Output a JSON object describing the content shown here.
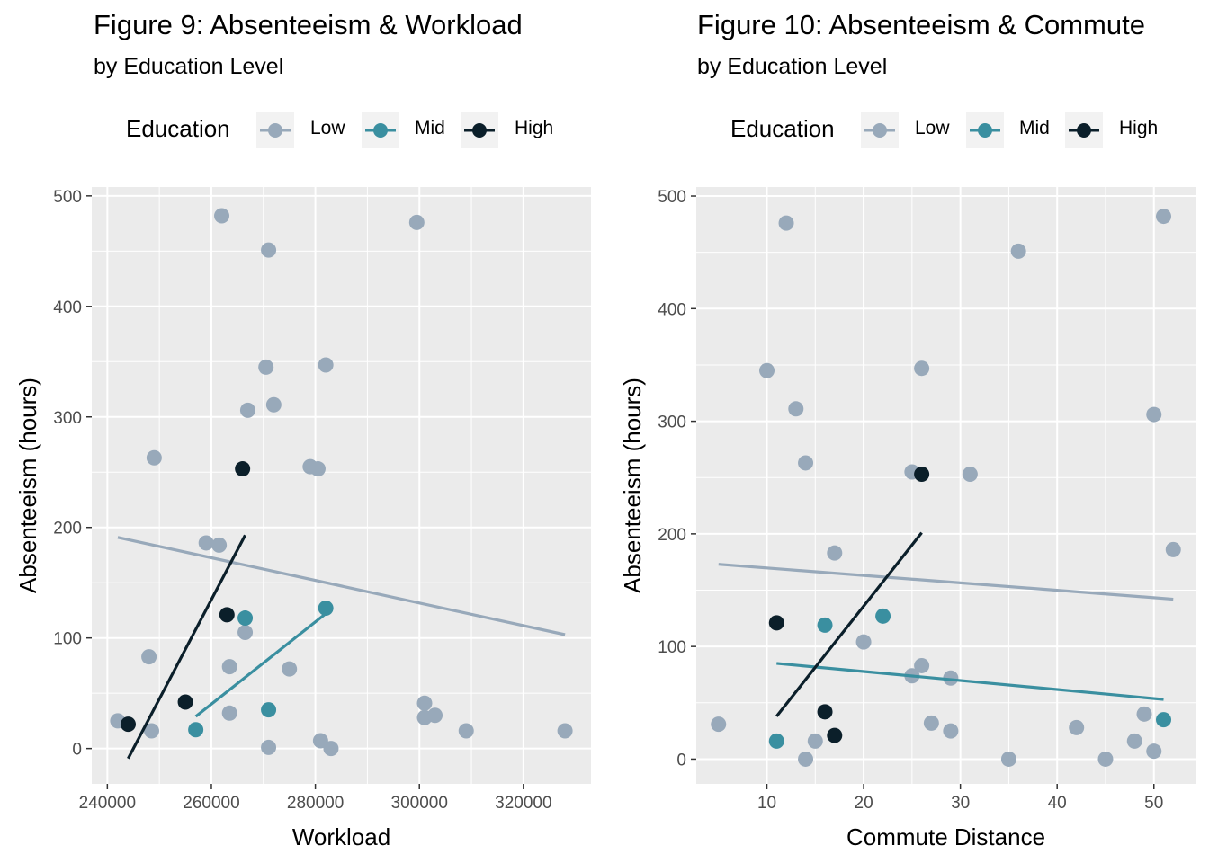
{
  "chart_data": [
    {
      "type": "scatter",
      "title": "Figure 9: Absenteeism & Workload",
      "subtitle": "by Education Level",
      "xlabel": "Workload",
      "ylabel": "Absenteeism (hours)",
      "xlim": [
        237000,
        333000
      ],
      "ylim": [
        -32,
        508
      ],
      "x_ticks": [
        240000,
        260000,
        280000,
        300000,
        320000
      ],
      "x_tick_labels": [
        "240000",
        "260000",
        "280000",
        "300000",
        "320000"
      ],
      "y_ticks": [
        0,
        100,
        200,
        300,
        400,
        500
      ],
      "y_tick_labels": [
        "0",
        "100",
        "200",
        "300",
        "400",
        "500"
      ],
      "grid": true,
      "legend": {
        "title": "Education",
        "position": "top"
      },
      "series": [
        {
          "name": "Low",
          "color": "#98a9ba",
          "points": [
            [
              262000,
              482
            ],
            [
              271000,
              451
            ],
            [
              299500,
              476
            ],
            [
              270500,
              345
            ],
            [
              282000,
              347
            ],
            [
              272000,
              311
            ],
            [
              267000,
              306
            ],
            [
              249000,
              263
            ],
            [
              279000,
              255
            ],
            [
              280500,
              253
            ],
            [
              259000,
              186
            ],
            [
              261500,
              184
            ],
            [
              266500,
              105
            ],
            [
              248000,
              83
            ],
            [
              263500,
              74
            ],
            [
              275000,
              72
            ],
            [
              242000,
              25
            ],
            [
              248500,
              16
            ],
            [
              263500,
              32
            ],
            [
              301000,
              41
            ],
            [
              301000,
              28
            ],
            [
              303000,
              30
            ],
            [
              309000,
              16
            ],
            [
              328000,
              16
            ],
            [
              281000,
              7
            ],
            [
              271000,
              1
            ],
            [
              283000,
              0
            ]
          ],
          "trend": [
            [
              242000,
              191
            ],
            [
              328000,
              103
            ]
          ]
        },
        {
          "name": "Mid",
          "color": "#3a8fa0",
          "points": [
            [
              282000,
              127
            ],
            [
              266500,
              118
            ],
            [
              257000,
              17
            ],
            [
              271000,
              35
            ]
          ],
          "trend": [
            [
              257000,
              29
            ],
            [
              282000,
              122
            ]
          ]
        },
        {
          "name": "High",
          "color": "#0b1f2a",
          "points": [
            [
              266000,
              253
            ],
            [
              263000,
              121
            ],
            [
              255000,
              42
            ],
            [
              244000,
              22
            ]
          ],
          "trend": [
            [
              244000,
              -9
            ],
            [
              266500,
              193
            ]
          ]
        }
      ]
    },
    {
      "type": "scatter",
      "title": "Figure 10: Absenteeism & Commute",
      "subtitle": "by Education Level",
      "xlabel": "Commute Distance",
      "ylabel": "Absenteeism (hours)",
      "xlim": [
        2.7,
        54.3
      ],
      "ylim": [
        -22,
        508
      ],
      "x_ticks": [
        10,
        20,
        30,
        40,
        50
      ],
      "x_tick_labels": [
        "10",
        "20",
        "30",
        "40",
        "50"
      ],
      "y_ticks": [
        0,
        100,
        200,
        300,
        400,
        500
      ],
      "y_tick_labels": [
        "0",
        "100",
        "200",
        "300",
        "400",
        "500"
      ],
      "grid": true,
      "legend": {
        "title": "Education",
        "position": "top"
      },
      "series": [
        {
          "name": "Low",
          "color": "#98a9ba",
          "points": [
            [
              12,
              476
            ],
            [
              51,
              482
            ],
            [
              36,
              451
            ],
            [
              10,
              345
            ],
            [
              26,
              347
            ],
            [
              13,
              311
            ],
            [
              50,
              306
            ],
            [
              14,
              263
            ],
            [
              25,
              255
            ],
            [
              31,
              253
            ],
            [
              17,
              183
            ],
            [
              52,
              186
            ],
            [
              20,
              104
            ],
            [
              26,
              83
            ],
            [
              25,
              74
            ],
            [
              29,
              72
            ],
            [
              5,
              31
            ],
            [
              15,
              16
            ],
            [
              27,
              32
            ],
            [
              29,
              25
            ],
            [
              42,
              28
            ],
            [
              48,
              16
            ],
            [
              49,
              40
            ],
            [
              50,
              7
            ],
            [
              14,
              0
            ],
            [
              35,
              0
            ],
            [
              45,
              0
            ]
          ],
          "trend": [
            [
              5,
              173
            ],
            [
              52,
              142
            ]
          ]
        },
        {
          "name": "Mid",
          "color": "#3a8fa0",
          "points": [
            [
              22,
              127
            ],
            [
              16,
              119
            ],
            [
              11,
              16
            ],
            [
              51,
              35
            ]
          ],
          "trend": [
            [
              11,
              85
            ],
            [
              51,
              53
            ]
          ]
        },
        {
          "name": "High",
          "color": "#0b1f2a",
          "points": [
            [
              26,
              253
            ],
            [
              11,
              121
            ],
            [
              16,
              42
            ],
            [
              17,
              21
            ]
          ],
          "trend": [
            [
              11,
              38
            ],
            [
              26,
              201
            ]
          ]
        }
      ]
    }
  ]
}
